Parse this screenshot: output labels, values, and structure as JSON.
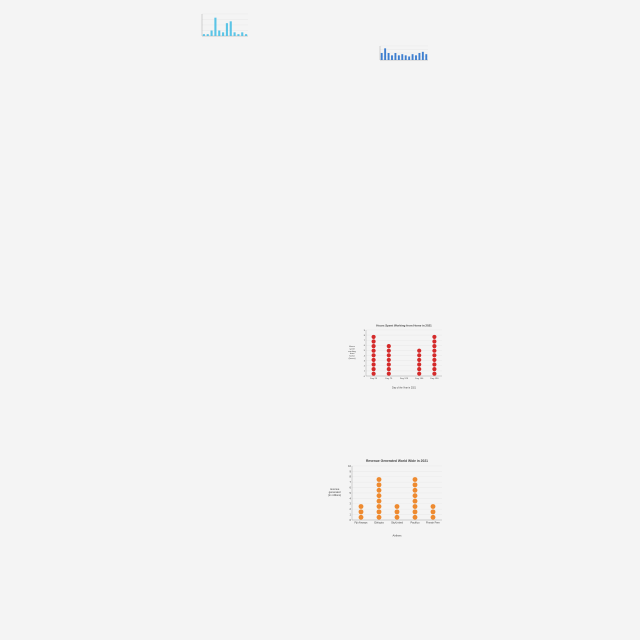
{
  "colors": {
    "background": "#f4f4f4",
    "bar_light_blue": "#5bc4e6",
    "bar_blue": "#3e7fd0",
    "dot_red": "#d42a2a",
    "dot_orange": "#ee8a2f",
    "gridline": "#e2e2e2",
    "axis": "#999999",
    "text": "#444444"
  },
  "chart_data": [
    {
      "id": "chart1",
      "type": "bar",
      "title": "",
      "xlabel": "",
      "ylabel": "",
      "categories": [
        "",
        "",
        "",
        "",
        "",
        "",
        "",
        "",
        "",
        "",
        "",
        ""
      ],
      "values": [
        1,
        1,
        3,
        10,
        3,
        2,
        7,
        8,
        2,
        1,
        2,
        1
      ],
      "ylim": [
        0,
        12
      ],
      "yticks": [
        "",
        "",
        "",
        "",
        ""
      ],
      "grid": true,
      "bar_color": "#5bc4e6"
    },
    {
      "id": "chart2",
      "type": "bar",
      "title": "",
      "subtitle": "",
      "xlabel": "",
      "ylabel": "",
      "categories": [
        "",
        "",
        "",
        "",
        "",
        "",
        "",
        "",
        "",
        "",
        "",
        "",
        "",
        ""
      ],
      "values": [
        6,
        10,
        6,
        4,
        6,
        4,
        5,
        4,
        3,
        5,
        4,
        6,
        7,
        5
      ],
      "ylim": [
        0,
        12
      ],
      "yticks": [
        "",
        "",
        "",
        "",
        ""
      ],
      "grid": true,
      "bar_color": "#3e7fd0"
    },
    {
      "id": "chart3",
      "type": "scatter",
      "title": "Hours Spent Working from Home in 2021",
      "xlabel": "Day of the Year in 2021",
      "ylabel": [
        "Hours",
        "spent",
        "working",
        "from",
        "home",
        "(hours)"
      ],
      "categories": [
        "Day 25",
        "Day 75",
        "Day 125",
        "Day 150",
        "Day 190"
      ],
      "values": [
        9,
        7,
        0,
        6,
        9
      ],
      "ylim": [
        0,
        10
      ],
      "yticks": [
        "0",
        "1",
        "2",
        "3",
        "4",
        "5",
        "6",
        "7",
        "8",
        "9"
      ],
      "grid": true,
      "dot_color": "#d42a2a"
    },
    {
      "id": "chart4",
      "type": "scatter",
      "title": "Revenue Generated World Wide in 2021",
      "xlabel": "Airlines",
      "ylabel": [
        "revenue",
        "generated",
        "(in millions)"
      ],
      "categories": [
        "Fiji Airways",
        "Ethiopia",
        "SkyUnited",
        "Pacifico",
        "Finnair Fern"
      ],
      "values": [
        3,
        8,
        3,
        8,
        3
      ],
      "ylim": [
        0,
        10
      ],
      "yticks": [
        "0",
        "1",
        "2",
        "3",
        "4",
        "5",
        "6",
        "7",
        "8",
        "9",
        "10"
      ],
      "grid": true,
      "dot_color": "#ee8a2f"
    }
  ]
}
